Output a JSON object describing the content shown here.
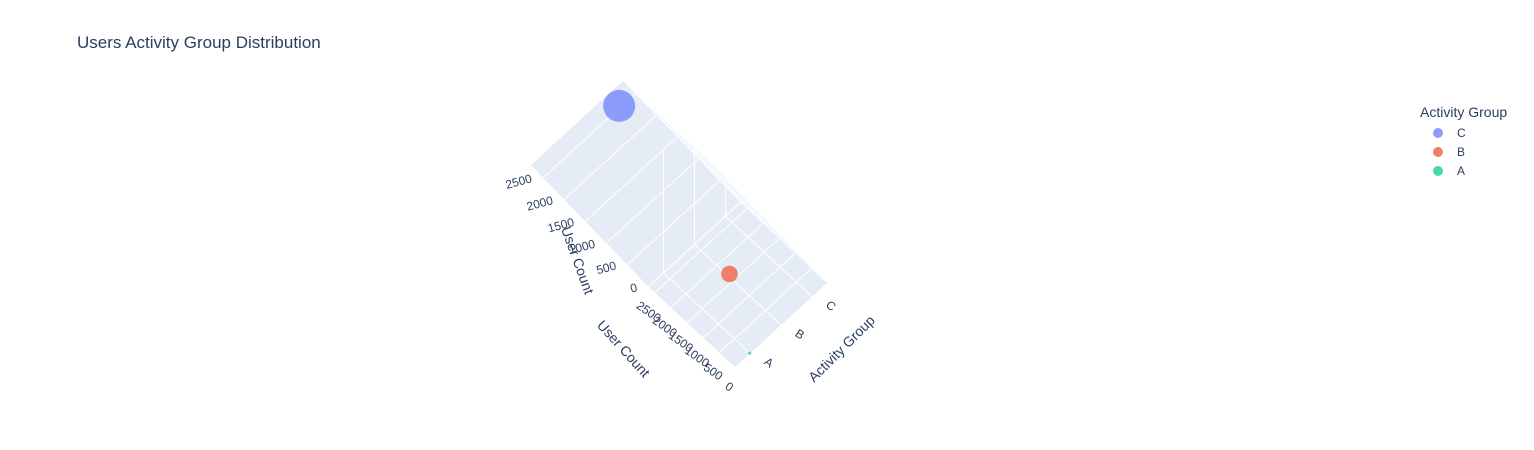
{
  "chart_data": {
    "type": "scatter",
    "title": "Users Activity Group Distribution",
    "scene": "3d",
    "axes": {
      "x": {
        "label": "User Count",
        "ticks": [
          "0",
          "500",
          "1000",
          "1500",
          "2000",
          "2500"
        ]
      },
      "y": {
        "label": "Activity Group",
        "ticks": [
          "A",
          "B",
          "C"
        ]
      },
      "z": {
        "label": "User Count",
        "ticks": [
          "0",
          "500",
          "1000",
          "1500",
          "2000",
          "2500"
        ]
      }
    },
    "legend": {
      "title": "Activity Group",
      "placement": "top-right"
    },
    "series": [
      {
        "name": "C",
        "color": "#8c9cfa",
        "x": 2600,
        "y": "C",
        "z": 2600
      },
      {
        "name": "B",
        "color": "#ef7f6c",
        "x": 700,
        "y": "B",
        "z": 700
      },
      {
        "name": "A",
        "color": "#48d6ae",
        "x": 10,
        "y": "A",
        "z": 10
      }
    ]
  }
}
